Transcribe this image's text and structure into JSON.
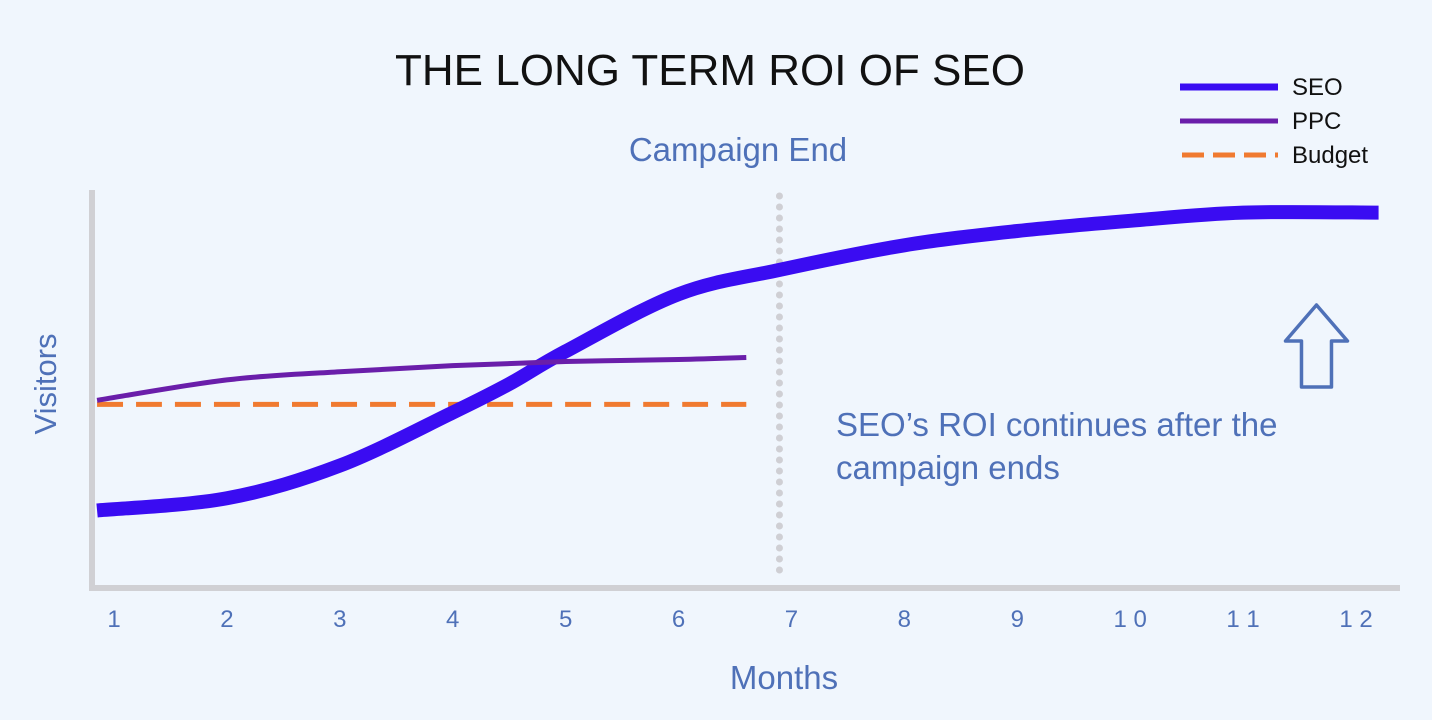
{
  "chart_data": {
    "type": "line",
    "title": "THE LONG TERM ROI OF SEO",
    "xlabel": "Months",
    "ylabel": "Visitors",
    "categories": [
      "1",
      "2",
      "3",
      "4",
      "5",
      "6",
      "7",
      "8",
      "9",
      "1 0",
      "1 1",
      "1 2"
    ],
    "xlim": [
      1,
      12
    ],
    "ylim": [
      0,
      100
    ],
    "grid": false,
    "legend_position": "top-right",
    "series": [
      {
        "name": "SEO",
        "x": [
          0.85,
          2,
          3,
          4,
          4.5,
          5,
          6,
          6.9,
          8,
          9,
          10,
          11,
          12.2
        ],
        "y": [
          19,
          22,
          30,
          43,
          50,
          58,
          72,
          78,
          84,
          87.5,
          90,
          92,
          92
        ],
        "color": "#3a0cf2",
        "style": "solid"
      },
      {
        "name": "PPC",
        "x": [
          0.85,
          2,
          3,
          4,
          5,
          6,
          6.6
        ],
        "y": [
          46,
          51,
          53,
          54.5,
          55.5,
          56,
          56.5
        ],
        "color": "#6a1eaa",
        "style": "solid"
      },
      {
        "name": "Budget",
        "x": [
          0.85,
          6.6
        ],
        "y": [
          45,
          45
        ],
        "color": "#f07a30",
        "style": "dashed"
      }
    ],
    "annotations": {
      "campaign_end": {
        "label": "Campaign End",
        "x": 7
      },
      "note_line1": "SEO’s ROI continues after the",
      "note_line2": "campaign ends",
      "note_arrow_x": 11.65
    }
  }
}
